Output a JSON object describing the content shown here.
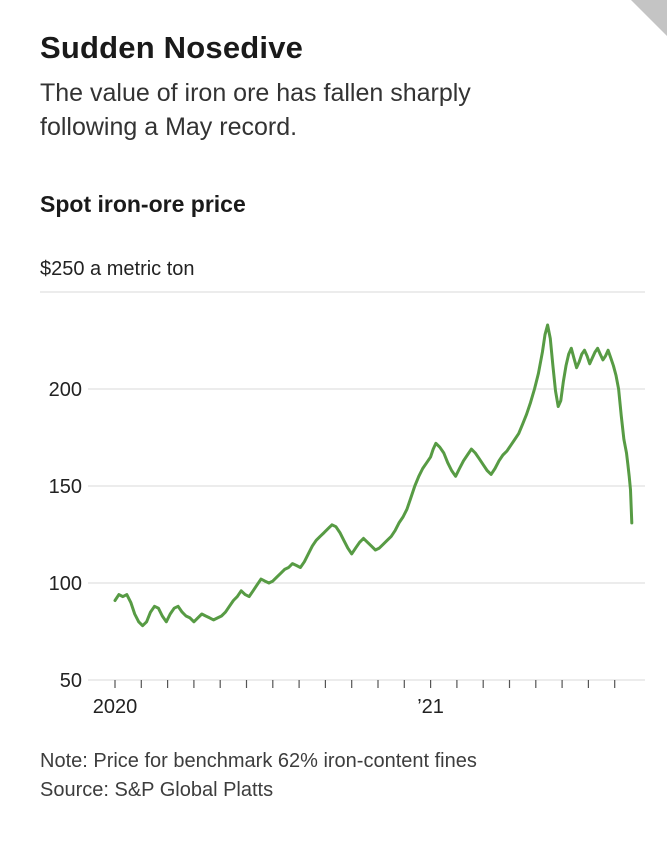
{
  "page": {
    "title": "Sudden Nosedive",
    "subtitle": "The value of iron ore has fallen sharply following a May record.",
    "note": "Note: Price for benchmark 62% iron-content fines",
    "source": "Source: S&P Global Platts"
  },
  "chart_data": {
    "type": "line",
    "title": "Spot iron-ore price",
    "unit_label": "$250 a metric ton",
    "ylabel": "price, $ per metric ton",
    "ylim": [
      50,
      250
    ],
    "yticks": [
      50,
      100,
      150,
      200
    ],
    "ytick_top": 250,
    "grid": true,
    "line_color": "#579b44",
    "grid_color": "#dadada",
    "tick_color": "#555555",
    "label_color": "#222222",
    "xticks": [
      0,
      1,
      2,
      3,
      4,
      5,
      6,
      7,
      8,
      9,
      10,
      11,
      12,
      13,
      14,
      15,
      16,
      17,
      18,
      19
    ],
    "xtick_labels": [
      {
        "month": 0,
        "label": "2020"
      },
      {
        "month": 12,
        "label": "’21"
      }
    ],
    "x_unit": "months since Jan 2020",
    "series": [
      {
        "name": "Spot iron-ore price",
        "x": [
          0,
          0.15,
          0.3,
          0.45,
          0.6,
          0.75,
          0.9,
          1.05,
          1.2,
          1.35,
          1.5,
          1.65,
          1.8,
          1.95,
          2.1,
          2.25,
          2.4,
          2.55,
          2.7,
          2.85,
          3,
          3.15,
          3.3,
          3.45,
          3.6,
          3.75,
          3.9,
          4.05,
          4.2,
          4.35,
          4.5,
          4.65,
          4.8,
          4.95,
          5.1,
          5.25,
          5.4,
          5.55,
          5.7,
          5.85,
          6,
          6.15,
          6.3,
          6.45,
          6.6,
          6.75,
          6.9,
          7.05,
          7.2,
          7.35,
          7.5,
          7.65,
          7.8,
          7.95,
          8.1,
          8.25,
          8.4,
          8.55,
          8.7,
          8.85,
          9,
          9.15,
          9.3,
          9.45,
          9.6,
          9.75,
          9.9,
          10.05,
          10.2,
          10.35,
          10.5,
          10.65,
          10.8,
          10.95,
          11.1,
          11.25,
          11.4,
          11.55,
          11.7,
          11.85,
          12,
          12.1,
          12.2,
          12.35,
          12.5,
          12.65,
          12.8,
          12.95,
          13.1,
          13.25,
          13.4,
          13.55,
          13.7,
          13.85,
          14,
          14.15,
          14.3,
          14.45,
          14.6,
          14.75,
          14.9,
          15.05,
          15.2,
          15.35,
          15.5,
          15.65,
          15.8,
          15.95,
          16.1,
          16.25,
          16.35,
          16.45,
          16.55,
          16.65,
          16.75,
          16.85,
          16.95,
          17.05,
          17.15,
          17.25,
          17.35,
          17.45,
          17.55,
          17.65,
          17.75,
          17.85,
          17.95,
          18.05,
          18.15,
          18.25,
          18.35,
          18.45,
          18.55,
          18.65,
          18.75,
          18.85,
          18.95,
          19.05,
          19.15,
          19.25,
          19.35,
          19.45,
          19.5,
          19.55,
          19.6,
          19.65
        ],
        "values": [
          91,
          94,
          93,
          94,
          90,
          84,
          80,
          78,
          80,
          85,
          88,
          87,
          83,
          80,
          84,
          87,
          88,
          85,
          83,
          82,
          80,
          82,
          84,
          83,
          82,
          81,
          82,
          83,
          85,
          88,
          91,
          93,
          96,
          94,
          93,
          96,
          99,
          102,
          101,
          100,
          101,
          103,
          105,
          107,
          108,
          110,
          109,
          108,
          111,
          115,
          119,
          122,
          124,
          126,
          128,
          130,
          129,
          126,
          122,
          118,
          115,
          118,
          121,
          123,
          121,
          119,
          117,
          118,
          120,
          122,
          124,
          127,
          131,
          134,
          138,
          144,
          150,
          155,
          159,
          162,
          165,
          169,
          172,
          170,
          167,
          162,
          158,
          155,
          159,
          163,
          166,
          169,
          167,
          164,
          161,
          158,
          156,
          159,
          163,
          166,
          168,
          171,
          174,
          177,
          182,
          187,
          193,
          200,
          208,
          219,
          228,
          233,
          226,
          212,
          199,
          191,
          194,
          204,
          212,
          218,
          221,
          216,
          211,
          214,
          218,
          220,
          217,
          213,
          216,
          219,
          221,
          218,
          215,
          217,
          220,
          216,
          212,
          207,
          200,
          186,
          174,
          167,
          161,
          155,
          148,
          131
        ]
      }
    ]
  }
}
